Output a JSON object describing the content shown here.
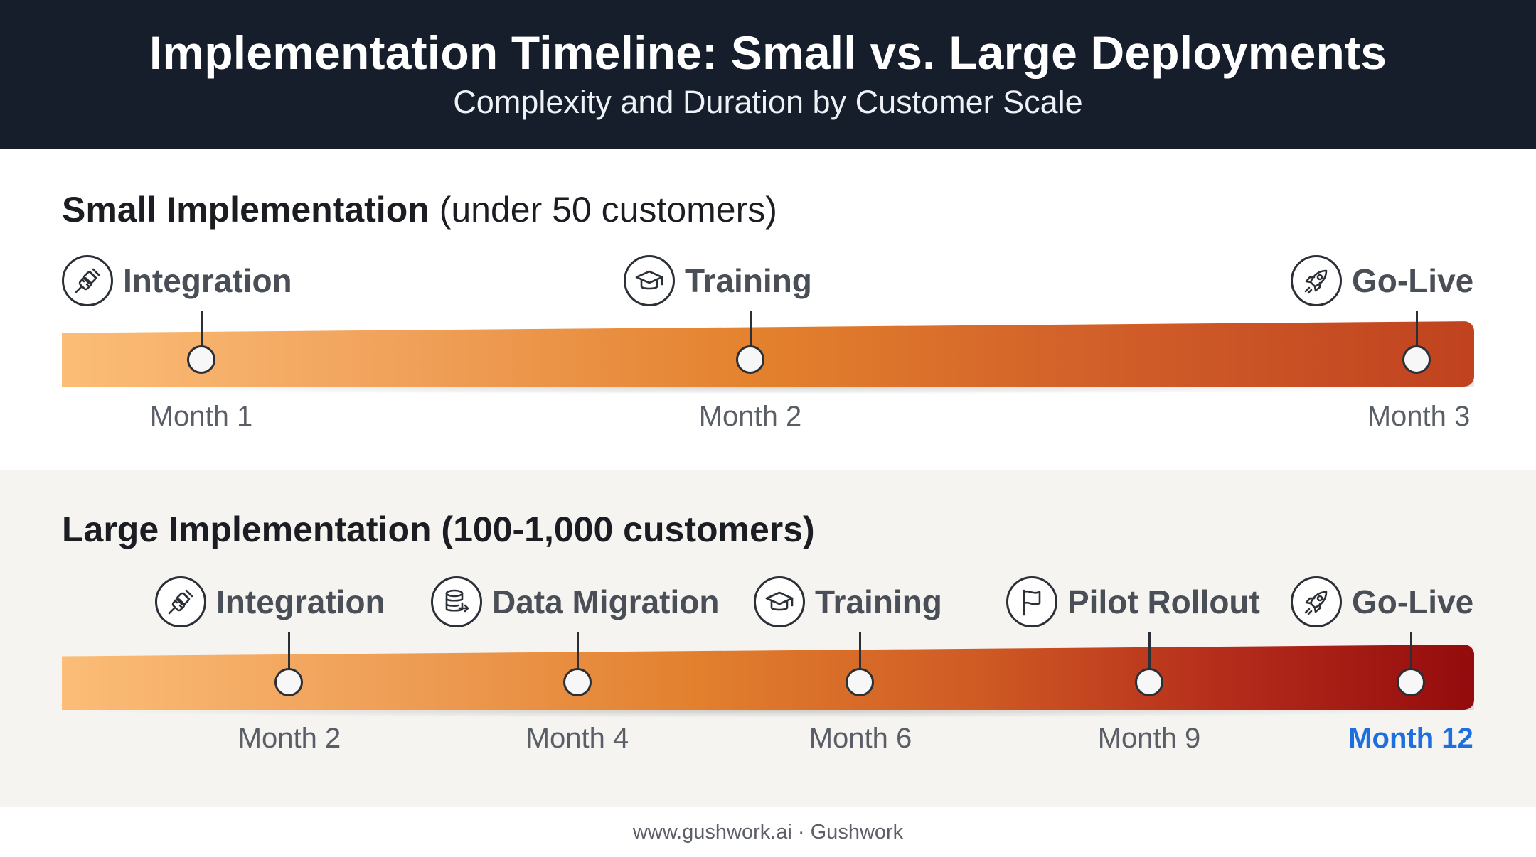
{
  "header": {
    "title": "Implementation Timeline: Small vs. Large Deployments",
    "subtitle": "Complexity and Duration by Customer Scale"
  },
  "small": {
    "title_bold": "Small Implementation",
    "title_rest": "(under 50 customers)",
    "milestones": [
      {
        "label": "Integration",
        "icon": "plug-icon",
        "month": "Month 1"
      },
      {
        "label": "Training",
        "icon": "graduation-cap-icon",
        "month": "Month 2"
      },
      {
        "label": "Go-Live",
        "icon": "rocket-icon",
        "month": "Month 3"
      }
    ],
    "bar_colors": [
      "#fbbd77",
      "#e3802c",
      "#c0421f"
    ]
  },
  "large": {
    "title_bold": "Large Implementation (100-1,000 customers)",
    "milestones": [
      {
        "label": "Integration",
        "icon": "plug-icon",
        "month": "Month 2"
      },
      {
        "label": "Data Migration",
        "icon": "database-icon",
        "month": "Month 4"
      },
      {
        "label": "Training",
        "icon": "graduation-cap-icon",
        "month": "Month 6"
      },
      {
        "label": "Pilot Rollout",
        "icon": "flag-icon",
        "month": "Month 9"
      },
      {
        "label": "Go-Live",
        "icon": "rocket-icon",
        "month": "Month 12",
        "highlight": true
      }
    ],
    "bar_colors": [
      "#fbbd77",
      "#e2802e",
      "#940b0d"
    ],
    "highlight_color": "#1d6fe0"
  },
  "footer": {
    "text": "www.gushwork.ai · Gushwork"
  }
}
